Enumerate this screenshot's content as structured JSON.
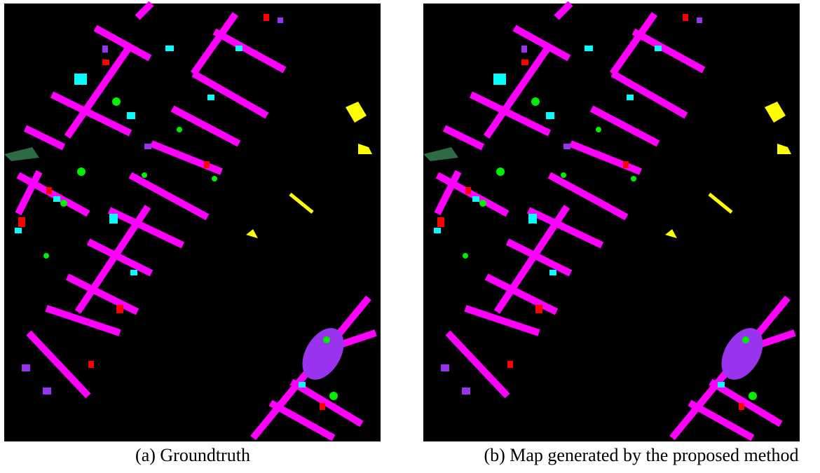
{
  "figures": [
    {
      "caption": "(a) Groundtruth"
    },
    {
      "caption": "(b) Map generated by the proposed method"
    }
  ]
}
